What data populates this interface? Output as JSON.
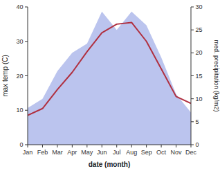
{
  "chart_data": {
    "type": "line",
    "categories": [
      "Jan",
      "Feb",
      "Mar",
      "Apr",
      "May",
      "Jun",
      "Jul",
      "Aug",
      "Sep",
      "Oct",
      "Nov",
      "Dec"
    ],
    "series": [
      {
        "type": "area",
        "axis": "y2",
        "color": "#bbc4ee",
        "values": [
          8.0,
          10.0,
          16.0,
          20.0,
          22.0,
          29.0,
          25.0,
          29.0,
          26.0,
          19.0,
          11.0,
          7.0
        ]
      },
      {
        "type": "line",
        "color": "#b03040",
        "values": [
          8.5,
          10.5,
          16.0,
          21.0,
          27.0,
          32.5,
          35.0,
          35.5,
          30.0,
          22.0,
          14.0,
          12.0
        ]
      }
    ],
    "xlabel": "date (month)",
    "ylabel": "max temp (C)",
    "y2label": "med. precipitation (kg/m2)",
    "ylim": [
      0,
      40
    ],
    "yticks": [
      0,
      10,
      20,
      30,
      40
    ],
    "y2lim": [
      0,
      30
    ],
    "y2ticks": [
      0,
      5,
      10,
      15,
      20,
      25,
      30
    ],
    "grid": false
  }
}
